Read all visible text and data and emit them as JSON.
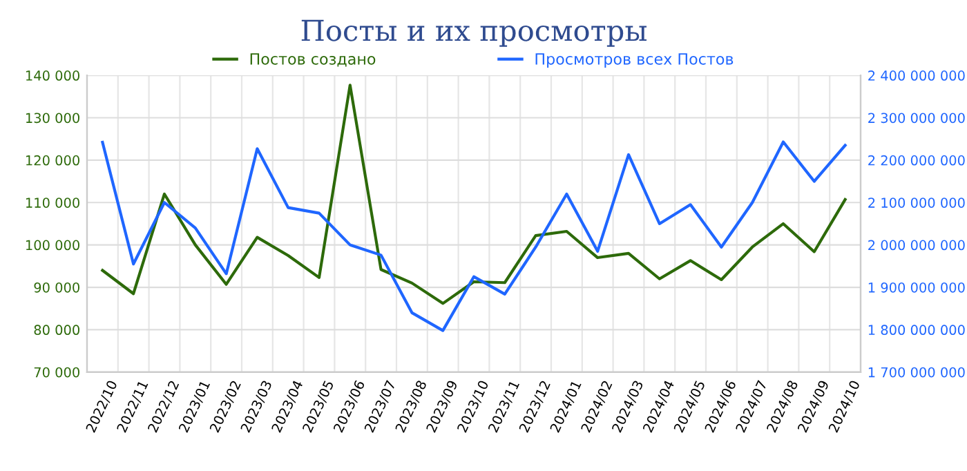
{
  "chart_data": {
    "type": "line",
    "title": "Посты и их просмотры",
    "legend": "top",
    "grid": true,
    "categories": [
      "2022/10",
      "2022/11",
      "2022/12",
      "2023/01",
      "2023/02",
      "2023/03",
      "2023/04",
      "2023/05",
      "2023/06",
      "2023/07",
      "2023/08",
      "2023/09",
      "2023/10",
      "2023/11",
      "2023/12",
      "2024/01",
      "2024/02",
      "2024/03",
      "2024/04",
      "2024/05",
      "2024/06",
      "2024/07",
      "2024/08",
      "2024/09",
      "2024/10"
    ],
    "series": [
      {
        "name": "Постов создано",
        "color": "#2d6a0a",
        "values": [
          94000,
          88500,
          112000,
          100000,
          90700,
          101800,
          97500,
          92300,
          137700,
          94200,
          91000,
          86200,
          91300,
          91100,
          102200,
          103200,
          97000,
          98000,
          92000,
          96300,
          91800,
          99500,
          105000,
          98400,
          110700
        ]
      },
      {
        "name": "Просмотров всех Постов",
        "color": "#1f66ff",
        "axis": "y2",
        "values": [
          2242000000,
          1955000000,
          2100000000,
          2040000000,
          1932000000,
          2227000000,
          2088000000,
          2075000000,
          2000000000,
          1976000000,
          1840000000,
          1798000000,
          1925000000,
          1884000000,
          1995000000,
          2120000000,
          1985000000,
          2213000000,
          2050000000,
          2095000000,
          1995000000,
          2100000000,
          2243000000,
          2150000000,
          2235000000
        ]
      }
    ],
    "ylim": [
      70000,
      140000
    ],
    "yticks": [
      {
        "value": 70000,
        "label": "70 000"
      },
      {
        "value": 80000,
        "label": "80 000"
      },
      {
        "value": 90000,
        "label": "90 000"
      },
      {
        "value": 100000,
        "label": "100 000"
      },
      {
        "value": 110000,
        "label": "110 000"
      },
      {
        "value": 120000,
        "label": "120 000"
      },
      {
        "value": 130000,
        "label": "130 000"
      },
      {
        "value": 140000,
        "label": "140 000"
      }
    ],
    "y2lim": [
      1700000000,
      2400000000
    ],
    "y2ticks": [
      {
        "value": 1700000000,
        "label": "1 700 000 000"
      },
      {
        "value": 1800000000,
        "label": "1 800 000 000"
      },
      {
        "value": 1900000000,
        "label": "1 900 000 000"
      },
      {
        "value": 2000000000,
        "label": "2 000 000 000"
      },
      {
        "value": 2100000000,
        "label": "2 100 000 000"
      },
      {
        "value": 2200000000,
        "label": "2 200 000 000"
      },
      {
        "value": 2300000000,
        "label": "2 300 000 000"
      },
      {
        "value": 2400000000,
        "label": "2 400 000 000"
      }
    ]
  }
}
